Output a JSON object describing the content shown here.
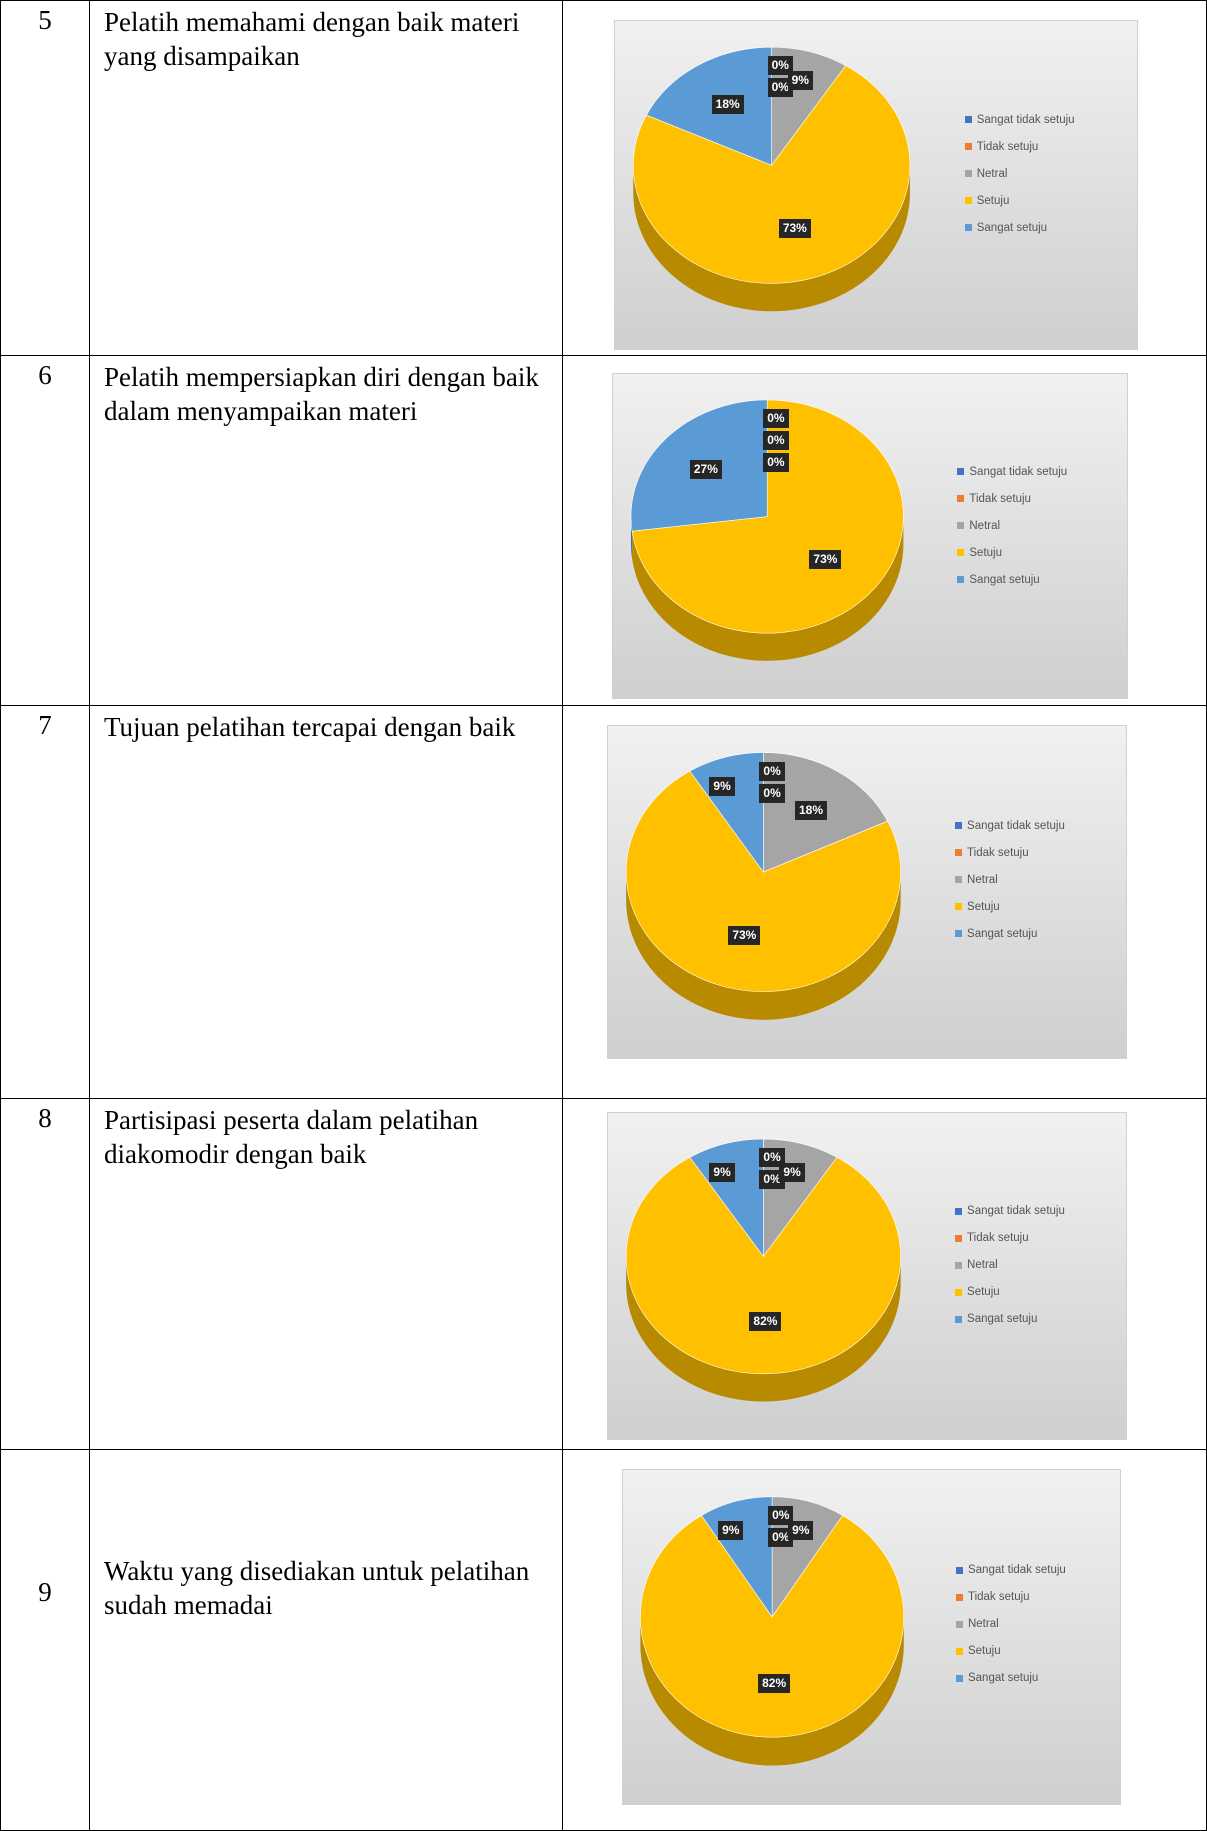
{
  "rows": [
    {
      "no": "5",
      "statement": "Pelatih memahami dengan baik materi yang disampaikan"
    },
    {
      "no": "6",
      "statement": "Pelatih mempersiapkan diri dengan baik dalam menyampaikan materi"
    },
    {
      "no": "7",
      "statement": "Tujuan pelatihan tercapai dengan baik"
    },
    {
      "no": "8",
      "statement": "Partisipasi peserta dalam pelatihan diakomodir dengan baik"
    },
    {
      "no": "9",
      "statement": "Waktu yang disediakan untuk pelatihan sudah memadai"
    }
  ],
  "legend": [
    {
      "label": "Sangat tidak setuju",
      "color": "#4472C4"
    },
    {
      "label": "Tidak setuju",
      "color": "#ED7D31"
    },
    {
      "label": "Netral",
      "color": "#A5A5A5"
    },
    {
      "label": "Setuju",
      "color": "#FFC000"
    },
    {
      "label": "Sangat setuju",
      "color": "#5B9BD5"
    }
  ],
  "chart_data": [
    {
      "type": "pie",
      "title": "",
      "categories": [
        "Sangat tidak setuju",
        "Tidak setuju",
        "Netral",
        "Setuju",
        "Sangat setuju"
      ],
      "values": [
        0,
        0,
        9,
        73,
        18
      ],
      "data_labels": [
        "0%",
        "0%",
        "9%",
        "73%",
        "18%"
      ],
      "legend_position": "right",
      "style": "3d"
    },
    {
      "type": "pie",
      "title": "",
      "categories": [
        "Sangat tidak setuju",
        "Tidak setuju",
        "Netral",
        "Setuju",
        "Sangat setuju"
      ],
      "values": [
        0,
        0,
        0,
        73,
        27
      ],
      "data_labels": [
        "0%",
        "0%",
        "0%",
        "73%",
        "27%"
      ],
      "legend_position": "right",
      "style": "3d"
    },
    {
      "type": "pie",
      "title": "",
      "categories": [
        "Sangat tidak setuju",
        "Tidak setuju",
        "Netral",
        "Setuju",
        "Sangat setuju"
      ],
      "values": [
        0,
        0,
        18,
        73,
        9
      ],
      "data_labels": [
        "0%",
        "0%",
        "18%",
        "73%",
        "9%"
      ],
      "legend_position": "right",
      "style": "3d"
    },
    {
      "type": "pie",
      "title": "",
      "categories": [
        "Sangat tidak setuju",
        "Tidak setuju",
        "Netral",
        "Setuju",
        "Sangat setuju"
      ],
      "values": [
        0,
        0,
        9,
        82,
        9
      ],
      "data_labels": [
        "0%",
        "0%",
        "9%",
        "82%",
        "9%"
      ],
      "legend_position": "right",
      "style": "3d"
    },
    {
      "type": "pie",
      "title": "",
      "categories": [
        "Sangat tidak setuju",
        "Tidak setuju",
        "Netral",
        "Setuju",
        "Sangat setuju"
      ],
      "values": [
        0,
        0,
        9,
        82,
        9
      ],
      "data_labels": [
        "0%",
        "0%",
        "9%",
        "82%",
        "9%"
      ],
      "legend_position": "right",
      "style": "3d"
    }
  ]
}
